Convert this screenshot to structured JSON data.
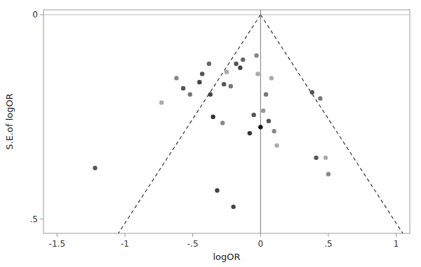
{
  "chart_data": {
    "type": "scatter",
    "xlabel": "logOR",
    "ylabel": "S.E.of logOR",
    "xlim": [
      -1.6,
      1.1
    ],
    "ylim": [
      0.535,
      -0.012
    ],
    "xticks": [
      {
        "value": -1.5,
        "label": "-1.5"
      },
      -1,
      {
        "value": -0.5,
        "label": "-.5"
      },
      0,
      {
        "value": 0.5,
        "label": ".5"
      },
      1
    ],
    "yticks": [
      0,
      {
        "value": 0.5,
        "label": ".5"
      }
    ],
    "grid": false,
    "series": [
      {
        "type": "scatter",
        "x": [
          -1.22,
          -0.73,
          -0.62,
          -0.57,
          -0.52,
          -0.45,
          -0.43,
          -0.38,
          -0.37,
          -0.35,
          -0.28,
          -0.27,
          -0.25,
          -0.22,
          -0.18,
          -0.15,
          -0.13,
          -0.08,
          -0.05,
          -0.03,
          -0.02,
          0.0,
          0.02,
          0.04,
          0.06,
          0.08,
          0.1,
          0.12,
          0.38,
          0.41,
          0.44,
          0.48,
          0.5,
          -0.32,
          -0.2
        ],
        "values": [
          0.375,
          0.215,
          0.155,
          0.18,
          0.195,
          0.165,
          0.145,
          0.12,
          0.195,
          0.25,
          0.265,
          0.17,
          0.14,
          0.175,
          0.12,
          0.13,
          0.11,
          0.29,
          0.245,
          0.1,
          0.145,
          0.275,
          0.235,
          0.195,
          0.26,
          0.155,
          0.285,
          0.32,
          0.19,
          0.35,
          0.205,
          0.35,
          0.39,
          0.43,
          0.47
        ],
        "colors": [
          "#555555",
          "#aaaaaa",
          "#888888",
          "#555555",
          "#777777",
          "#444444",
          "#555555",
          "#666666",
          "#444444",
          "#333333",
          "#888888",
          "#555555",
          "#aaaaaa",
          "#777777",
          "#555555",
          "#444444",
          "#666666",
          "#333333",
          "#555555",
          "#888888",
          "#aaaaaa",
          "#111111",
          "#999999",
          "#777777",
          "#555555",
          "#aaaaaa",
          "#888888",
          "#aaaaaa",
          "#555555",
          "#555555",
          "#777777",
          "#aaaaaa",
          "#888888",
          "#444444",
          "#444444"
        ]
      },
      {
        "type": "line",
        "line_style": "dashed",
        "color": "#333333",
        "x": [
          0.0,
          -1.0486
        ],
        "values": [
          0.0,
          0.535
        ]
      },
      {
        "type": "line",
        "line_style": "dashed",
        "color": "#333333",
        "x": [
          0.0,
          1.0486
        ],
        "values": [
          0.0,
          0.535
        ]
      }
    ],
    "vlines": [
      {
        "value": 0,
        "color": "#777777"
      }
    ],
    "hlines": [
      {
        "value": 0,
        "color": "#bbbbbb"
      }
    ]
  }
}
